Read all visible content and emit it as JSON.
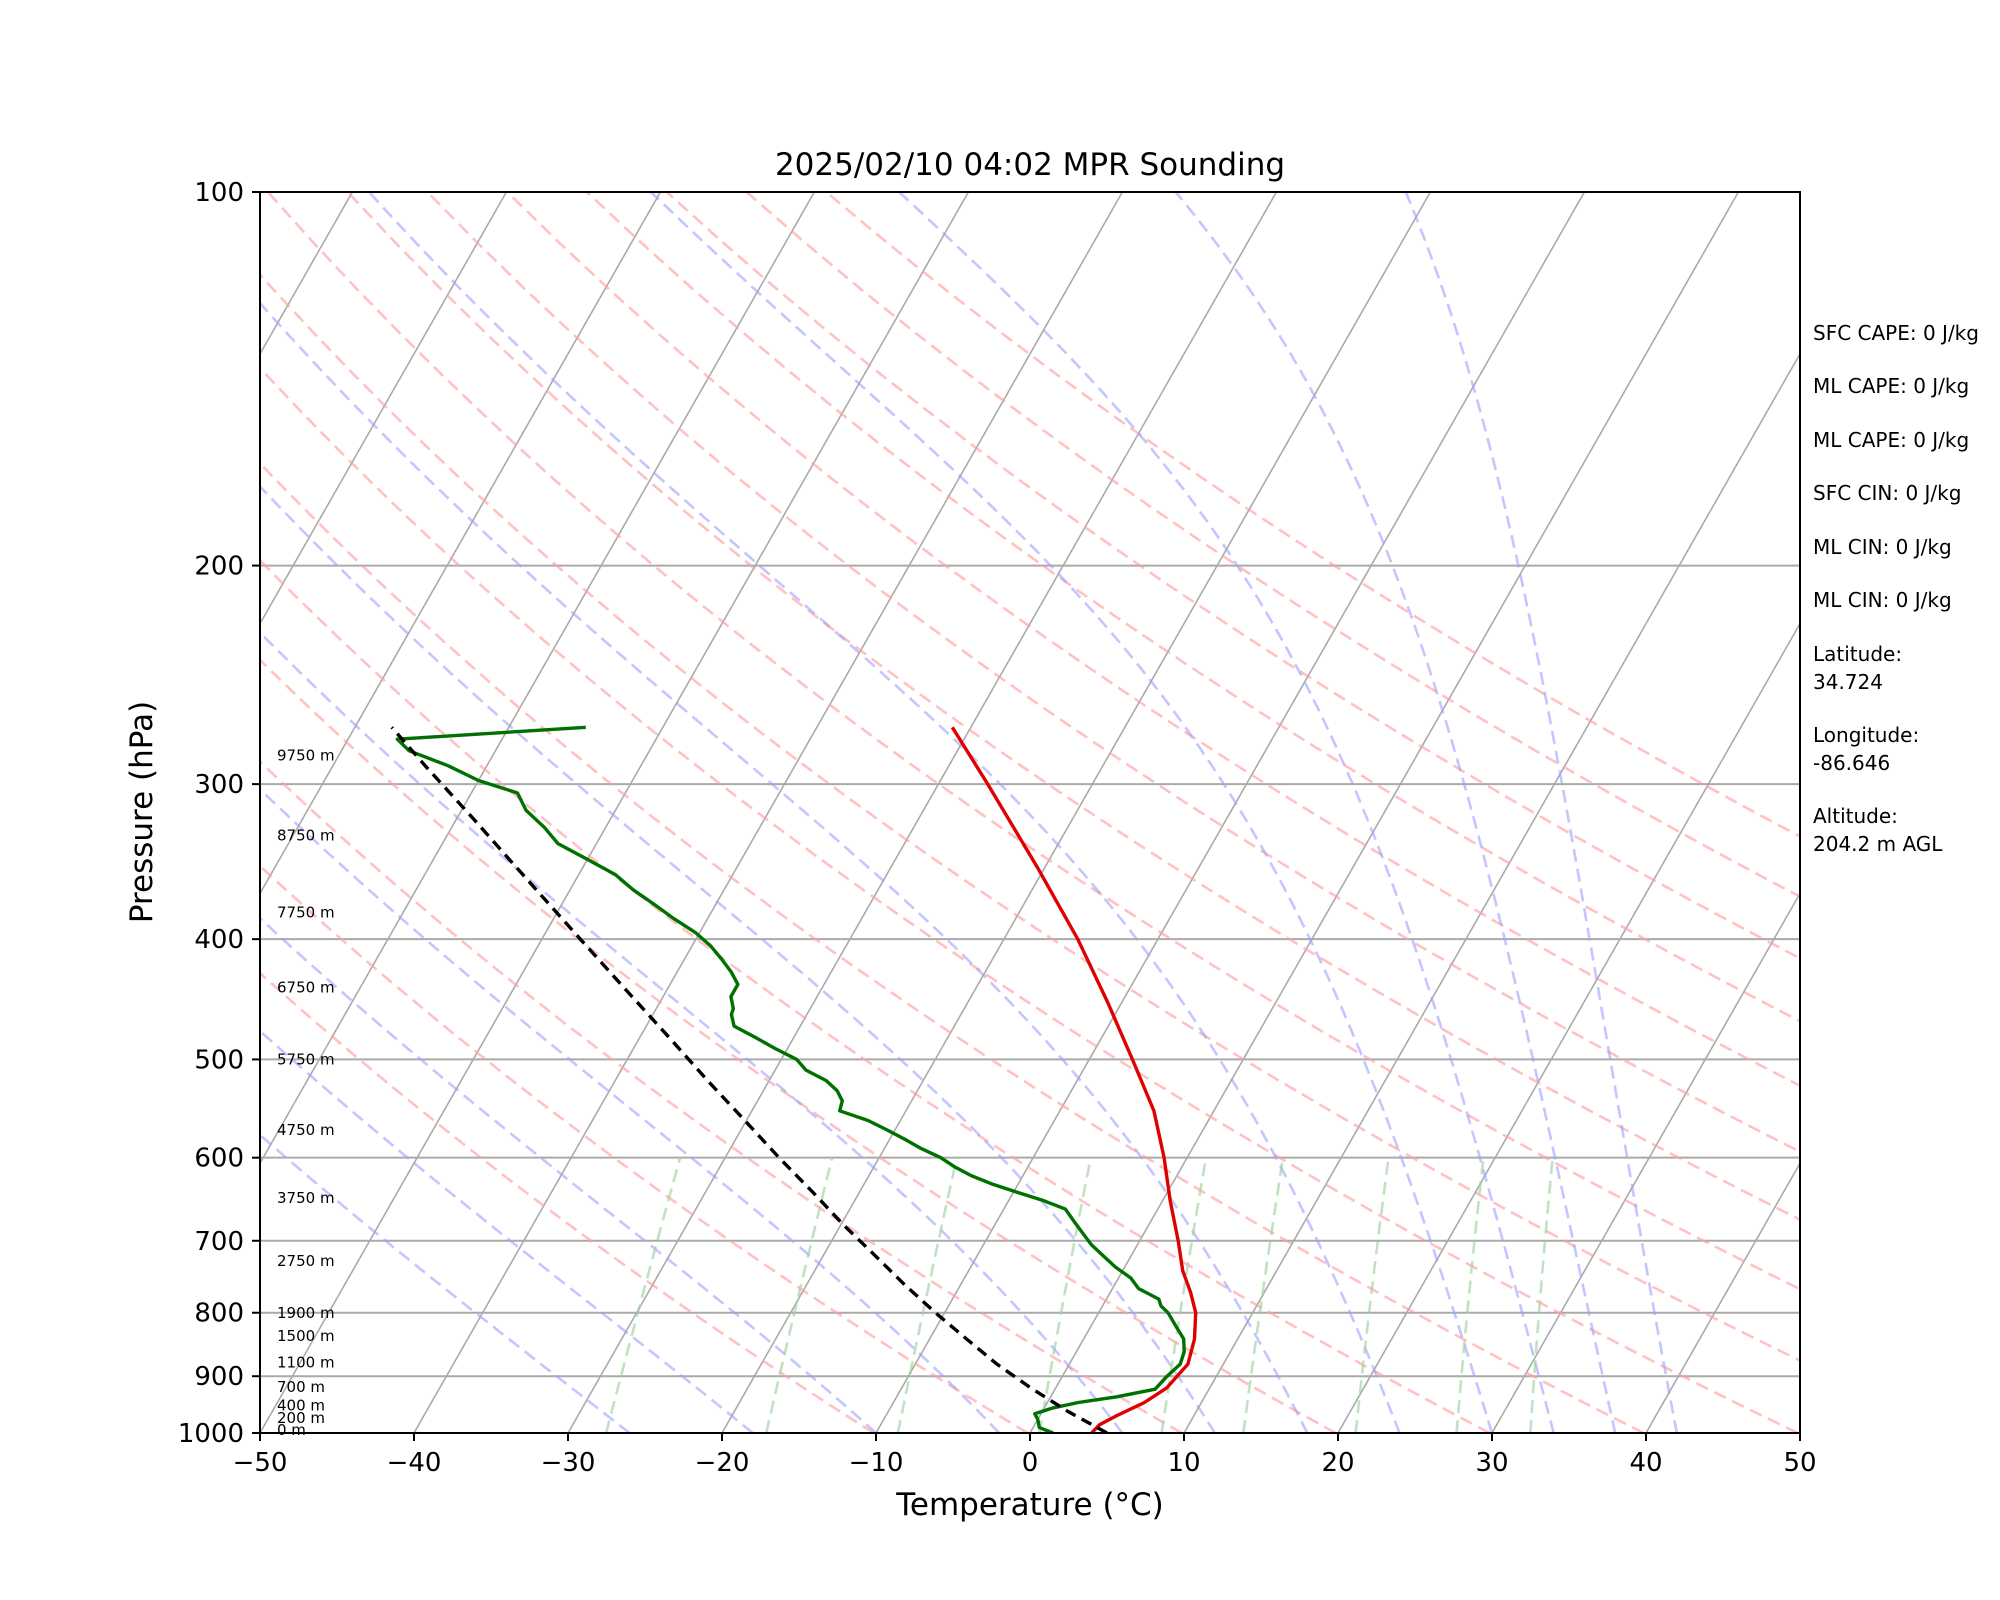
{
  "chart_data": {
    "type": "line",
    "title": "2025/02/10 04:02 MPR Sounding",
    "xlabel": "Temperature (°C)",
    "ylabel": "Pressure (hPa)",
    "xlim": [
      -50,
      50
    ],
    "ylim": [
      1000,
      100
    ],
    "y_scale": "log",
    "grid": true,
    "x_ticks": [
      "−50",
      "−40",
      "−30",
      "−20",
      "−10",
      "0",
      "10",
      "20",
      "30",
      "40",
      "50"
    ],
    "y_ticks": [
      "100",
      "200",
      "300",
      "400",
      "500",
      "600",
      "700",
      "800",
      "900",
      "1000"
    ],
    "skew_isotherm_ticks": [
      -150,
      -140,
      -130,
      -120,
      -110,
      -100,
      -90,
      -80,
      -70,
      -60,
      -50,
      -40,
      -30,
      -20,
      -10,
      0,
      10,
      20,
      30,
      40,
      50
    ],
    "dry_adiabat_thetas_K": [
      263,
      273,
      283,
      293,
      303,
      313,
      323,
      333,
      343,
      353,
      363,
      373,
      383,
      393,
      403,
      413
    ],
    "moist_adiabat_start_C": [
      -26,
      -18,
      -10,
      -2,
      6,
      12,
      18,
      24,
      30,
      34,
      38,
      42
    ],
    "mixing_ratio_lines_gkg": [
      0.4,
      1,
      2,
      4,
      7,
      10,
      16,
      24,
      32
    ],
    "height_labels": [
      {
        "text": "0 m",
        "p": 1000
      },
      {
        "text": "200 m",
        "p": 978
      },
      {
        "text": "400 m",
        "p": 956
      },
      {
        "text": "700 m",
        "p": 923
      },
      {
        "text": "1100 m",
        "p": 882
      },
      {
        "text": "1500 m",
        "p": 840
      },
      {
        "text": "1900 m",
        "p": 805
      },
      {
        "text": "2750 m",
        "p": 731
      },
      {
        "text": "3750 m",
        "p": 650
      },
      {
        "text": "4750 m",
        "p": 573
      },
      {
        "text": "5750 m",
        "p": 503
      },
      {
        "text": "6750 m",
        "p": 440
      },
      {
        "text": "7750 m",
        "p": 383
      },
      {
        "text": "8750 m",
        "p": 332
      },
      {
        "text": "9750 m",
        "p": 286
      }
    ],
    "series": [
      {
        "role": "temperature",
        "color": "#e00000",
        "p": [
          1000,
          985,
          968,
          945,
          920,
          880,
          840,
          800,
          770,
          740,
          700,
          650,
          600,
          550,
          500,
          450,
          400,
          350,
          300,
          270
        ],
        "t": [
          4.0,
          4.2,
          5.0,
          6.3,
          7.2,
          7.7,
          7.2,
          6.3,
          5.2,
          3.9,
          2.5,
          0.5,
          -1.5,
          -3.9,
          -7.2,
          -10.9,
          -15.2,
          -20.5,
          -26.8,
          -31.2
        ]
      },
      {
        "role": "dewpoint",
        "color": "#007000",
        "p": [
          1000,
          990,
          975,
          965,
          955,
          945,
          935,
          922,
          900,
          880,
          860,
          840,
          820,
          800,
          790,
          780,
          765,
          750,
          735,
          720,
          705,
          690,
          675,
          660,
          650,
          640,
          630,
          620,
          610,
          600,
          590,
          580,
          570,
          560,
          550,
          540,
          530,
          520,
          510,
          500,
          490,
          480,
          470,
          460,
          455,
          445,
          435,
          425,
          415,
          405,
          395,
          385,
          375,
          365,
          355,
          345,
          335,
          325,
          315,
          305,
          298,
          290,
          282,
          276,
          270
        ],
        "t": [
          1.5,
          0.4,
          0.0,
          -0.4,
          0.5,
          2.0,
          4.3,
          6.5,
          6.8,
          7.2,
          7.0,
          6.5,
          5.5,
          4.5,
          3.8,
          3.4,
          1.7,
          0.8,
          -0.6,
          -1.8,
          -3.0,
          -4.0,
          -5.0,
          -6.0,
          -7.7,
          -9.7,
          -11.7,
          -13.4,
          -14.8,
          -16.0,
          -17.6,
          -19.0,
          -20.5,
          -22.1,
          -24.3,
          -24.5,
          -25.2,
          -26.3,
          -28.0,
          -29.0,
          -30.8,
          -32.5,
          -34.3,
          -34.9,
          -35.0,
          -35.6,
          -35.6,
          -36.5,
          -37.6,
          -38.8,
          -40.3,
          -42.2,
          -44.0,
          -45.9,
          -47.6,
          -50.0,
          -52.5,
          -54.0,
          -55.8,
          -57.0,
          -60.0,
          -62.5,
          -65.6,
          -66.8,
          -55.0
        ]
      },
      {
        "role": "parcel",
        "color": "#000000",
        "dashed": true,
        "p": [
          1000,
          960,
          920,
          880,
          840,
          800,
          760,
          720,
          680,
          640,
          600,
          560,
          520,
          480,
          440,
          400,
          360,
          320,
          290,
          270
        ],
        "t": [
          5.0,
          1.6,
          -1.6,
          -4.7,
          -7.6,
          -10.6,
          -13.6,
          -16.6,
          -19.8,
          -23.0,
          -26.5,
          -30.1,
          -34.0,
          -38.1,
          -42.6,
          -47.5,
          -52.9,
          -58.9,
          -64.0,
          -67.6
        ]
      }
    ]
  },
  "side_panel": {
    "sfc_cape": "SFC CAPE: 0 J/kg",
    "ml_cape_1": "ML CAPE: 0 J/kg",
    "ml_cape_2": "ML CAPE: 0 J/kg",
    "sfc_cin": "SFC CIN: 0 J/kg",
    "ml_cin_1": "ML CIN: 0 J/kg",
    "ml_cin_2": "ML CIN: 0 J/kg",
    "latitude_label": "Latitude:",
    "latitude_value": "34.724",
    "longitude_label": "Longitude:",
    "longitude_value": "-86.646",
    "altitude_label": "Altitude:",
    "altitude_value": "204.2 m AGL"
  }
}
